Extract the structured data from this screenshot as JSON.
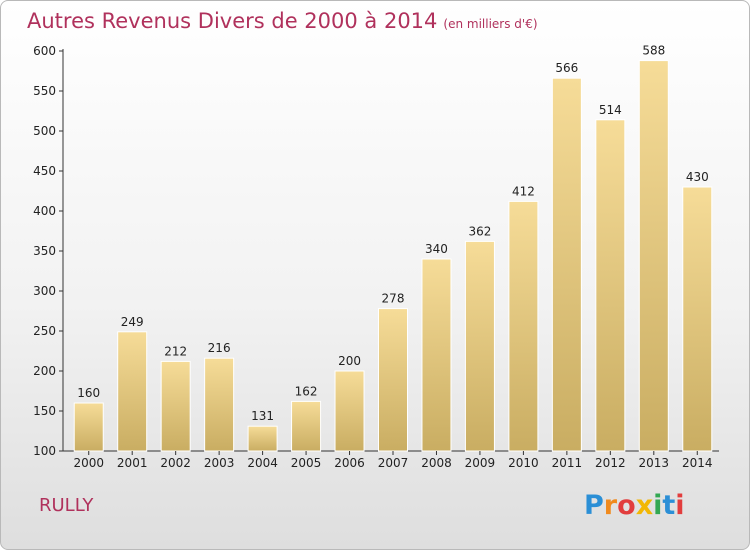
{
  "title": "Autres Revenus Divers de 2000 à 2014",
  "subtitle": "(en milliers d'€)",
  "place": "RULLY",
  "logo": {
    "letters": [
      "P",
      "r",
      "o",
      "x",
      "i",
      "t",
      "i"
    ],
    "colors": [
      "#2b8fd6",
      "#f08a1d",
      "#e23d3d",
      "#f2b705",
      "#33a852",
      "#2b8fd6",
      "#e23d3d"
    ]
  },
  "colors": {
    "title": "#b0315c",
    "bar_top": "#f6dc98",
    "bar_bottom": "#c9ad62",
    "axis": "#333333"
  },
  "chart_data": {
    "type": "bar",
    "title": "Autres Revenus Divers de 2000 à 2014",
    "subtitle": "(en milliers d'€)",
    "categories": [
      "2000",
      "2001",
      "2002",
      "2003",
      "2004",
      "2005",
      "2006",
      "2007",
      "2008",
      "2009",
      "2010",
      "2011",
      "2012",
      "2013",
      "2014"
    ],
    "values": [
      160,
      249,
      212,
      216,
      131,
      162,
      200,
      278,
      340,
      362,
      412,
      566,
      514,
      588,
      430
    ],
    "ylim": [
      100,
      600
    ],
    "yticks": [
      100,
      150,
      200,
      250,
      300,
      350,
      400,
      450,
      500,
      550,
      600
    ],
    "grid": false,
    "data_labels": true
  }
}
